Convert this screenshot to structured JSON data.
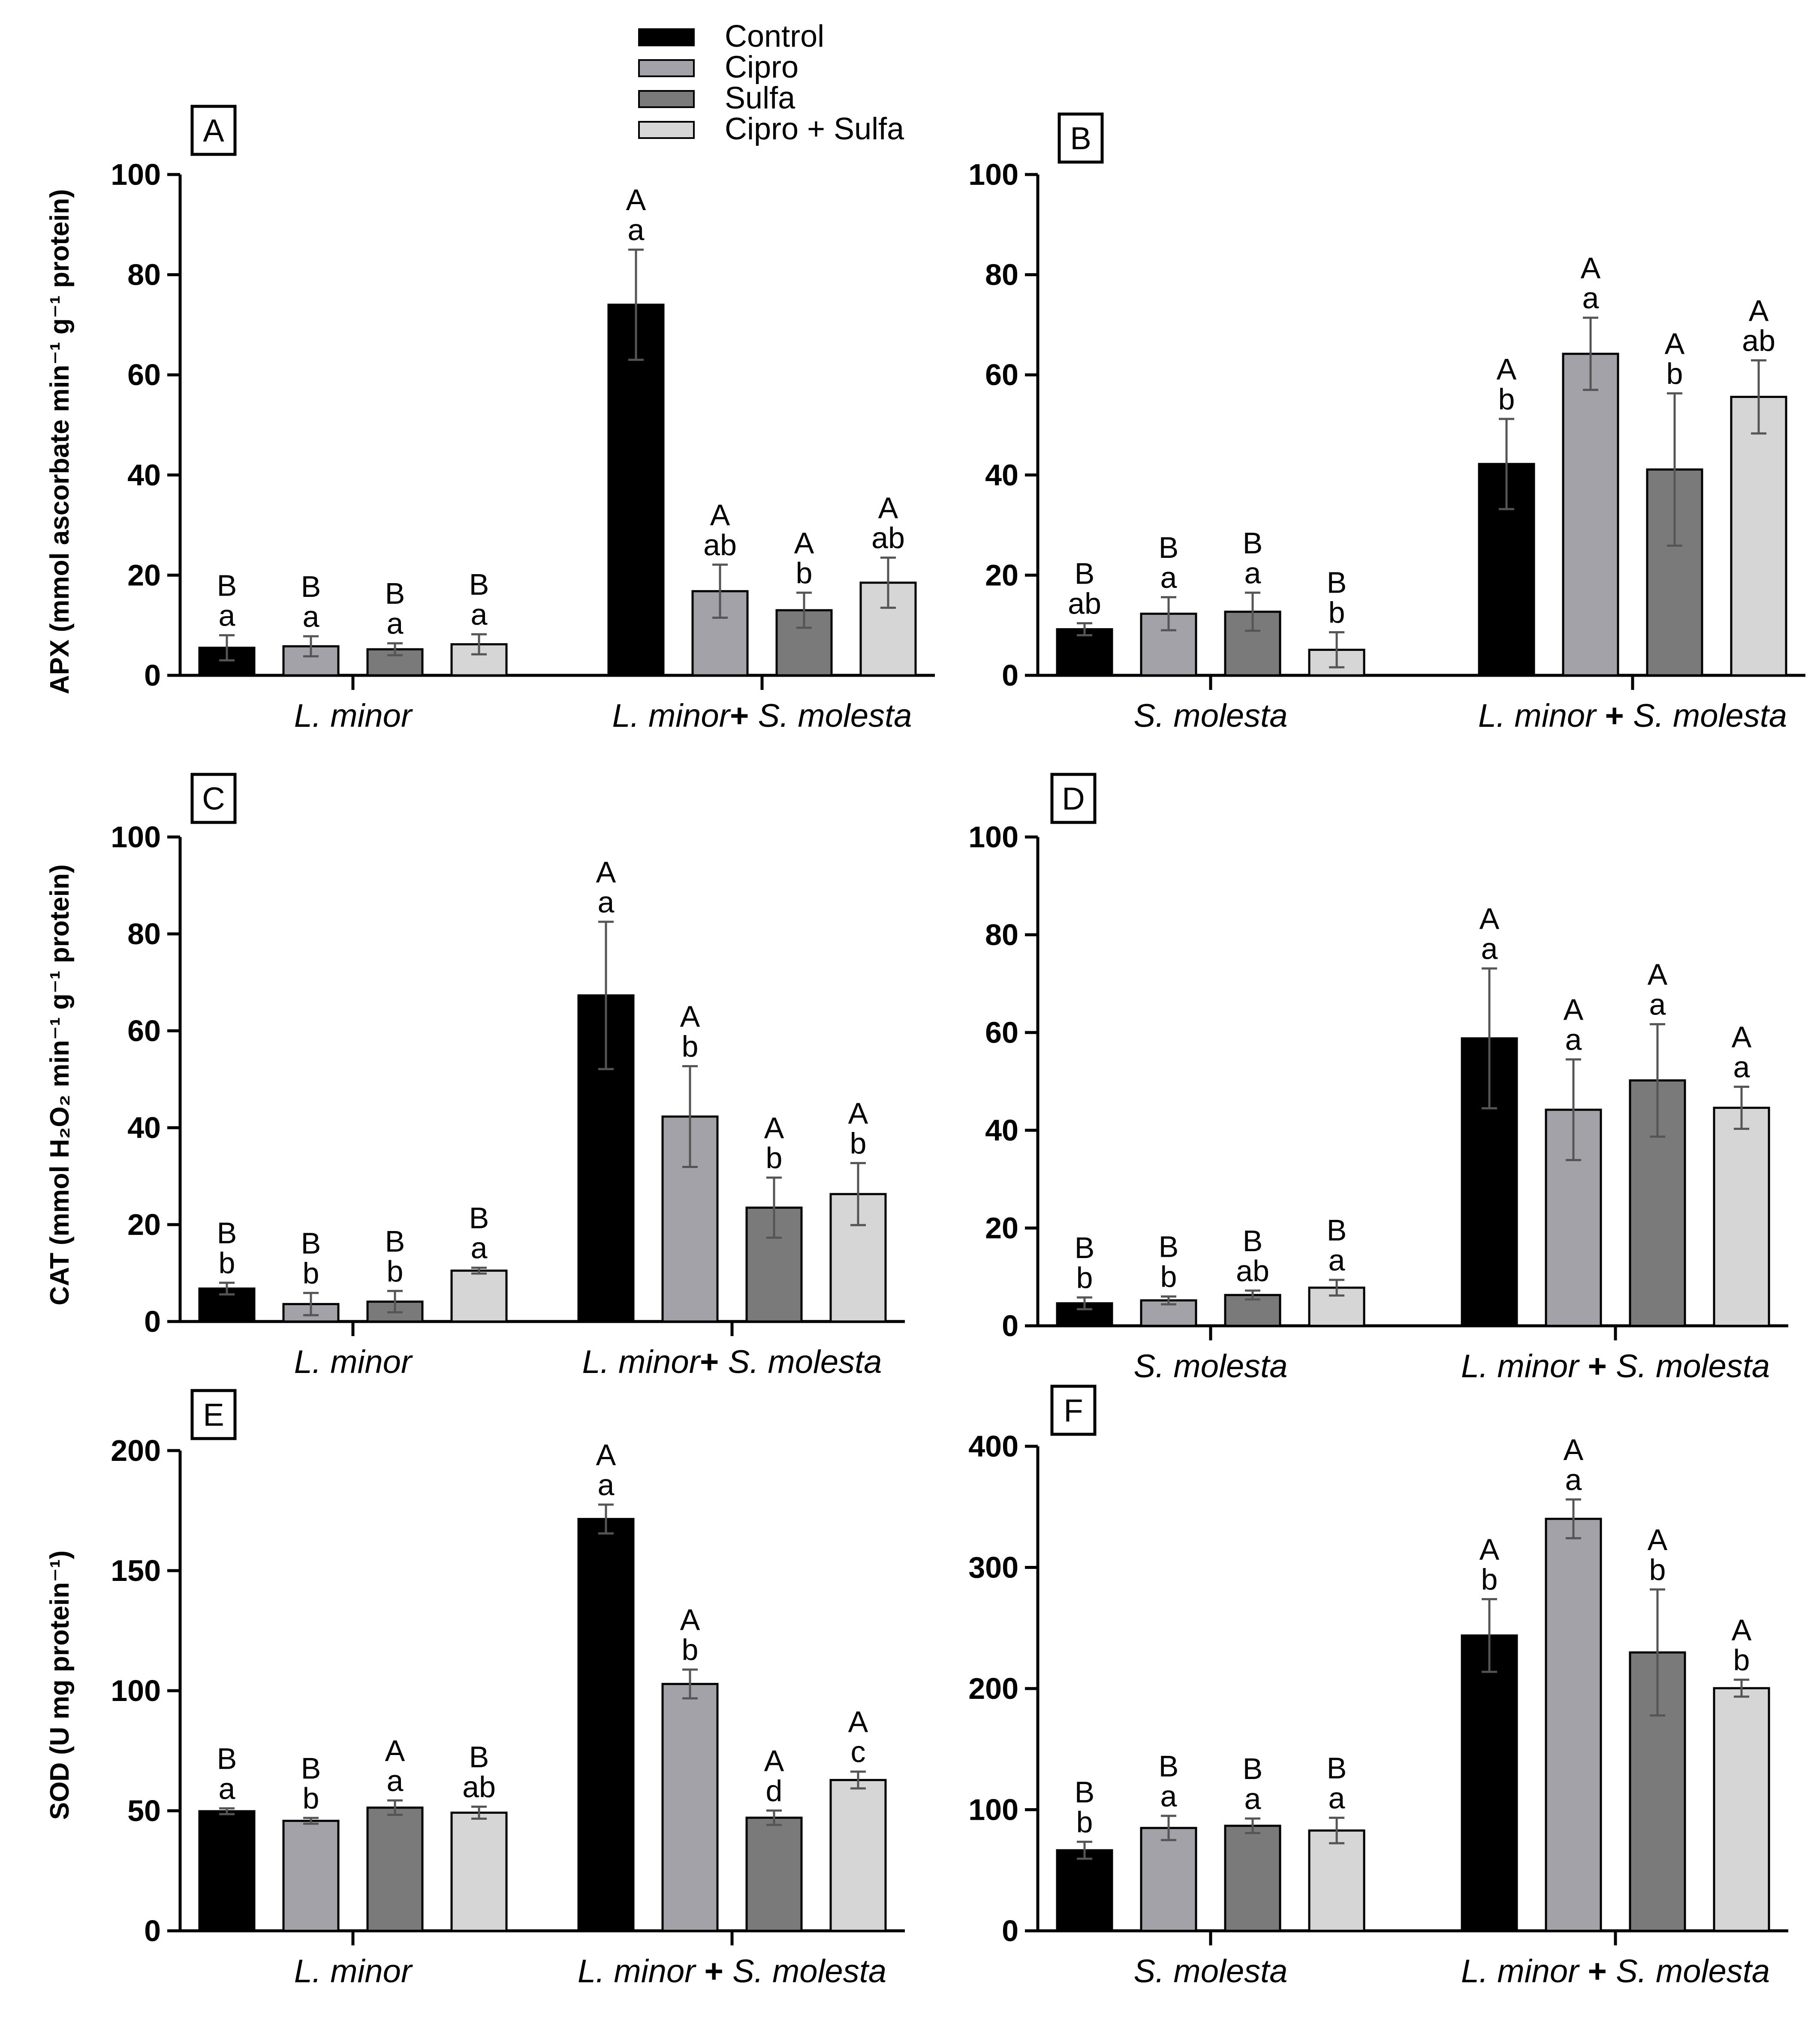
{
  "legend": {
    "position": "top-center",
    "entries": [
      {
        "label": "Control",
        "color": "#000000"
      },
      {
        "label": "Cipro",
        "color": "#a3a2a8"
      },
      {
        "label": "Sulfa",
        "color": "#7a7a7a"
      },
      {
        "label": "Cipro + Sulfa",
        "color": "#d6d6d6"
      }
    ]
  },
  "row_ylabels": [
    "APX (mmol ascorbate min⁻¹ g⁻¹ protein)",
    "CAT (mmol H₂O₂ min⁻¹ g⁻¹ protein)",
    "SOD (U mg protein⁻¹)"
  ],
  "chart_data": [
    {
      "panel": "A",
      "type": "bar",
      "ylim": [
        0,
        100
      ],
      "yticks": [
        0,
        20,
        40,
        60,
        80,
        100
      ],
      "group_label_parts": [
        [
          "L. minor"
        ],
        [
          "L. minor",
          "+",
          " S. molesta"
        ]
      ],
      "series": [
        "Control",
        "Cipro",
        "Sulfa",
        "Cipro + Sulfa"
      ],
      "groups": [
        {
          "values": [
            5.5,
            5.8,
            5.2,
            6.2
          ],
          "errors": [
            2.5,
            2.0,
            1.2,
            2.0
          ],
          "upper": [
            "B",
            "B",
            "B",
            "B"
          ],
          "lower": [
            "a",
            "a",
            "a",
            "a"
          ]
        },
        {
          "values": [
            74,
            16.8,
            13,
            18.5
          ],
          "errors": [
            11,
            5.3,
            3.5,
            5.0
          ],
          "upper": [
            "A",
            "A",
            "A",
            "A"
          ],
          "lower": [
            "a",
            "ab",
            "b",
            "ab"
          ]
        }
      ]
    },
    {
      "panel": "B",
      "type": "bar",
      "ylim": [
        0,
        100
      ],
      "yticks": [
        0,
        20,
        40,
        60,
        80,
        100
      ],
      "group_label_parts": [
        [
          "S. molesta"
        ],
        [
          "L. minor",
          " + ",
          "S. molesta"
        ]
      ],
      "series": [
        "Control",
        "Cipro",
        "Sulfa",
        "Cipro + Sulfa"
      ],
      "groups": [
        {
          "values": [
            9.2,
            12.3,
            12.7,
            5.1
          ],
          "errors": [
            1.2,
            3.3,
            3.8,
            3.5
          ],
          "upper": [
            "B",
            "B",
            "B",
            "B"
          ],
          "lower": [
            "ab",
            "a",
            "a",
            "b"
          ]
        },
        {
          "values": [
            42.2,
            64.2,
            41.1,
            55.6
          ],
          "errors": [
            9.0,
            7.2,
            15.2,
            7.3
          ],
          "upper": [
            "A",
            "A",
            "A",
            "A"
          ],
          "lower": [
            "b",
            "a",
            "b",
            "ab"
          ]
        }
      ]
    },
    {
      "panel": "C",
      "type": "bar",
      "ylim": [
        0,
        100
      ],
      "yticks": [
        0,
        20,
        40,
        60,
        80,
        100
      ],
      "group_label_parts": [
        [
          "L. minor"
        ],
        [
          "L. minor",
          "+",
          " S. molesta"
        ]
      ],
      "series": [
        "Control",
        "Cipro",
        "Sulfa",
        "Cipro + Sulfa"
      ],
      "groups": [
        {
          "values": [
            6.8,
            3.6,
            4.1,
            10.5
          ],
          "errors": [
            1.2,
            2.3,
            2.2,
            0.6
          ],
          "upper": [
            "B",
            "B",
            "B",
            "B"
          ],
          "lower": [
            "b",
            "b",
            "b",
            "a"
          ]
        },
        {
          "values": [
            67.3,
            42.3,
            23.5,
            26.3
          ],
          "errors": [
            15.2,
            10.4,
            6.2,
            6.4
          ],
          "upper": [
            "A",
            "A",
            "A",
            "A"
          ],
          "lower": [
            "a",
            "b",
            "b",
            "b"
          ]
        }
      ]
    },
    {
      "panel": "D",
      "type": "bar",
      "ylim": [
        0,
        100
      ],
      "yticks": [
        0,
        20,
        40,
        60,
        80,
        100
      ],
      "group_label_parts": [
        [
          "S. molesta"
        ],
        [
          "L. minor",
          " + ",
          "S. molesta"
        ]
      ],
      "series": [
        "Control",
        "Cipro",
        "Sulfa",
        "Cipro + Sulfa"
      ],
      "groups": [
        {
          "values": [
            4.6,
            5.2,
            6.3,
            7.8
          ],
          "errors": [
            1.2,
            0.8,
            0.9,
            1.6
          ],
          "upper": [
            "B",
            "B",
            "B",
            "B"
          ],
          "lower": [
            "b",
            "b",
            "ab",
            "a"
          ]
        },
        {
          "values": [
            58.8,
            44.2,
            50.2,
            44.6
          ],
          "errors": [
            14.3,
            10.3,
            11.5,
            4.3
          ],
          "upper": [
            "A",
            "A",
            "A",
            "A"
          ],
          "lower": [
            "a",
            "a",
            "a",
            "a"
          ]
        }
      ]
    },
    {
      "panel": "E",
      "type": "bar",
      "ylim": [
        0,
        200
      ],
      "yticks": [
        0,
        50,
        100,
        150,
        200
      ],
      "group_label_parts": [
        [
          "L. minor"
        ],
        [
          "L. minor ",
          "+",
          " S. molesta"
        ]
      ],
      "series": [
        "Control",
        "Cipro",
        "Sulfa",
        "Cipro + Sulfa"
      ],
      "groups": [
        {
          "values": [
            49.8,
            45.8,
            51.3,
            49.2
          ],
          "errors": [
            1.2,
            1.2,
            3.0,
            2.5
          ],
          "upper": [
            "B",
            "B",
            "A",
            "B"
          ],
          "lower": [
            "a",
            "b",
            "a",
            "ab"
          ]
        },
        {
          "values": [
            171.5,
            102.8,
            47.1,
            62.8
          ],
          "errors": [
            6.0,
            6.0,
            3.0,
            3.5
          ],
          "upper": [
            "A",
            "A",
            "A",
            "A"
          ],
          "lower": [
            "a",
            "b",
            "d",
            "c"
          ]
        }
      ]
    },
    {
      "panel": "F",
      "type": "bar",
      "ylim": [
        0,
        400
      ],
      "yticks": [
        0,
        100,
        200,
        300,
        400
      ],
      "group_label_parts": [
        [
          "S. molesta"
        ],
        [
          "L. minor",
          " + ",
          "S. molesta"
        ]
      ],
      "series": [
        "Control",
        "Cipro",
        "Sulfa",
        "Cipro + Sulfa"
      ],
      "groups": [
        {
          "values": [
            66.5,
            84.9,
            86.7,
            82.8
          ],
          "errors": [
            7.0,
            10.0,
            6.0,
            10.5
          ],
          "upper": [
            "B",
            "B",
            "B",
            "B"
          ],
          "lower": [
            "b",
            "a",
            "a",
            "a"
          ]
        },
        {
          "values": [
            243.8,
            340.1,
            229.8,
            200.3
          ],
          "errors": [
            30.0,
            16.0,
            52.0,
            7.0
          ],
          "upper": [
            "A",
            "A",
            "A",
            "A"
          ],
          "lower": [
            "b",
            "a",
            "b",
            "b"
          ]
        }
      ]
    }
  ]
}
